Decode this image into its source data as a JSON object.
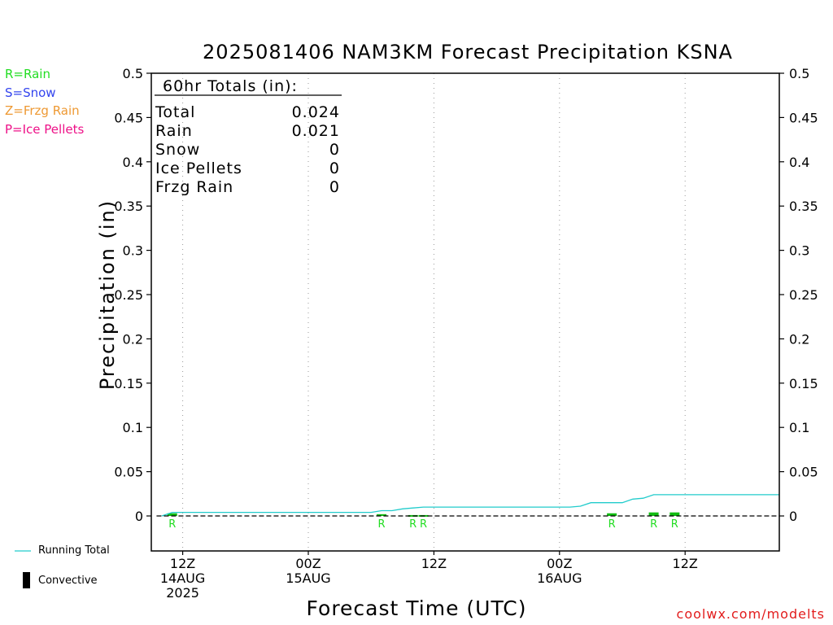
{
  "title": "2025081406 NAM3KM Forecast Precipitation KSNA",
  "legend_types": [
    {
      "text": "R=Rain",
      "color": "#22dd22"
    },
    {
      "text": "S=Snow",
      "color": "#3344ee"
    },
    {
      "text": "Z=Frzg Rain",
      "color": "#ee9933"
    },
    {
      "text": "P=Ice Pellets",
      "color": "#ee1188"
    }
  ],
  "ylabel": "Precipitation (in)",
  "xlabel": "Forecast Time (UTC)",
  "credit": "coolwx.com/modelts",
  "totals": {
    "header": "60hr Totals (in):",
    "rows": [
      {
        "label": "Total",
        "value": "0.024"
      },
      {
        "label": "Rain",
        "value": "0.021"
      },
      {
        "label": "Snow",
        "value": "0"
      },
      {
        "label": "Ice Pellets",
        "value": "0"
      },
      {
        "label": "Frzg Rain",
        "value": "0"
      }
    ]
  },
  "bottom_legend": {
    "running_total": "Running Total",
    "convective": "Convective"
  },
  "colors": {
    "running_total": "#22cccc",
    "rain_bar": "#11bb11",
    "rain_marker": "#22dd22",
    "grid": "#999999",
    "convective": "#000000"
  },
  "chart_data": {
    "type": "line",
    "ylim": [
      0,
      0.5
    ],
    "yticks": [
      "0",
      "0.05",
      "0.1",
      "0.15",
      "0.2",
      "0.25",
      "0.3",
      "0.35",
      "0.4",
      "0.45",
      "0.5"
    ],
    "xlim_hours_from_init": [
      3,
      63
    ],
    "x_ticks": [
      {
        "hour": 6,
        "lines": [
          "12Z",
          "14AUG",
          "2025"
        ]
      },
      {
        "hour": 18,
        "lines": [
          "00Z",
          "15AUG"
        ]
      },
      {
        "hour": 30,
        "lines": [
          "12Z"
        ]
      },
      {
        "hour": 42,
        "lines": [
          "00Z",
          "16AUG"
        ]
      },
      {
        "hour": 54,
        "lines": [
          "12Z"
        ]
      }
    ],
    "running_total": {
      "name": "Running Total",
      "x_hours": [
        4,
        5,
        6,
        7,
        8,
        9,
        10,
        11,
        12,
        13,
        14,
        15,
        16,
        17,
        18,
        19,
        20,
        21,
        22,
        23,
        24,
        25,
        26,
        27,
        28,
        29,
        30,
        31,
        32,
        33,
        34,
        35,
        36,
        37,
        38,
        39,
        40,
        41,
        42,
        43,
        44,
        45,
        46,
        47,
        48,
        49,
        50,
        51,
        52,
        53,
        54,
        55,
        56,
        57,
        58,
        59,
        60,
        61,
        62,
        63
      ],
      "values": [
        0.0,
        0.004,
        0.004,
        0.004,
        0.004,
        0.004,
        0.004,
        0.004,
        0.004,
        0.004,
        0.004,
        0.004,
        0.004,
        0.004,
        0.004,
        0.004,
        0.004,
        0.004,
        0.004,
        0.004,
        0.004,
        0.006,
        0.006,
        0.008,
        0.009,
        0.01,
        0.01,
        0.01,
        0.01,
        0.01,
        0.01,
        0.01,
        0.01,
        0.01,
        0.01,
        0.01,
        0.01,
        0.01,
        0.01,
        0.01,
        0.011,
        0.015,
        0.015,
        0.015,
        0.015,
        0.019,
        0.02,
        0.024,
        0.024,
        0.024,
        0.024,
        0.024,
        0.024,
        0.024,
        0.024,
        0.024,
        0.024,
        0.024,
        0.024,
        0.024
      ]
    },
    "precip_bars": [
      {
        "hour": 5,
        "value": 0.003,
        "type": "R"
      },
      {
        "hour": 25,
        "value": 0.002,
        "type": "R"
      },
      {
        "hour": 28,
        "value": 0.001,
        "type": "R"
      },
      {
        "hour": 29,
        "value": 0.001,
        "type": "R"
      },
      {
        "hour": 47,
        "value": 0.003,
        "type": "R"
      },
      {
        "hour": 51,
        "value": 0.004,
        "type": "R"
      },
      {
        "hour": 53,
        "value": 0.004,
        "type": "R"
      }
    ]
  }
}
